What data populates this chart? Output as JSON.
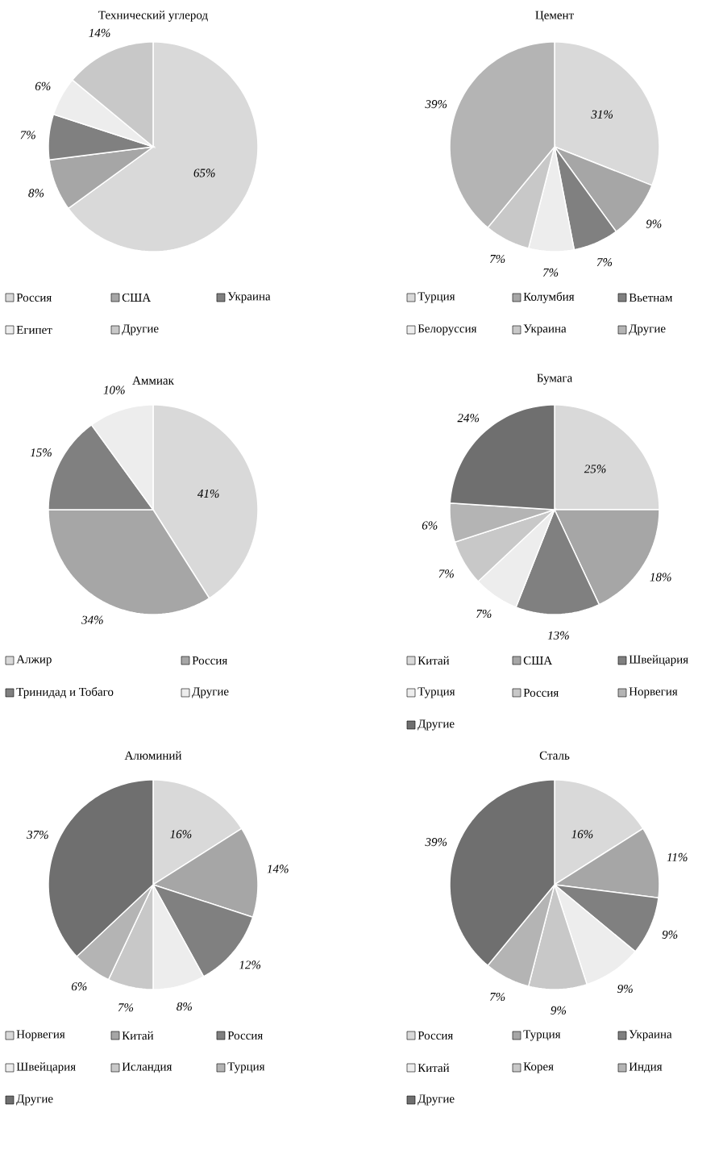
{
  "chart_data": [
    {
      "type": "pie",
      "title": "Технический углерод",
      "categories": [
        "Россия",
        "США",
        "Украина",
        "Египет",
        "Другие"
      ],
      "values": [
        65,
        8,
        7,
        6,
        14
      ],
      "value_labels": [
        "65%",
        "8%",
        "7%",
        "6%",
        "14%"
      ],
      "colors": [
        "#d9d9d9",
        "#a6a6a6",
        "#808080",
        "#ededed",
        "#c8c8c8"
      ],
      "legend": "bottom"
    },
    {
      "type": "pie",
      "title": "Цемент",
      "categories": [
        "Турция",
        "Колумбия",
        "Вьетнам",
        "Белоруссия",
        "Украина",
        "Другие"
      ],
      "values": [
        31,
        9,
        7,
        7,
        7,
        39
      ],
      "value_labels": [
        "31%",
        "9%",
        "7%",
        "7%",
        "7%",
        "39%"
      ],
      "colors": [
        "#d9d9d9",
        "#a6a6a6",
        "#808080",
        "#ededed",
        "#c8c8c8",
        "#b4b4b4"
      ],
      "legend": "bottom"
    },
    {
      "type": "pie",
      "title": "Аммиак",
      "categories": [
        "Алжир",
        "Россия",
        "Тринидад и Тобаго",
        "Другие"
      ],
      "values": [
        41,
        34,
        15,
        10
      ],
      "value_labels": [
        "41%",
        "34%",
        "15%",
        "10%"
      ],
      "colors": [
        "#d9d9d9",
        "#a6a6a6",
        "#808080",
        "#ededed"
      ],
      "legend": "bottom"
    },
    {
      "type": "pie",
      "title": "Бумага",
      "categories": [
        "Китай",
        "США",
        "Швейцария",
        "Турция",
        "Россия",
        "Норвегия",
        "Другие"
      ],
      "values": [
        25,
        18,
        13,
        7,
        7,
        6,
        24
      ],
      "value_labels": [
        "25%",
        "18%",
        "13%",
        "7%",
        "7%",
        "6%",
        "24%"
      ],
      "colors": [
        "#d9d9d9",
        "#a6a6a6",
        "#808080",
        "#ededed",
        "#c8c8c8",
        "#b4b4b4",
        "#6f6f6f"
      ],
      "legend": "bottom"
    },
    {
      "type": "pie",
      "title": "Алюминий",
      "categories": [
        "Норвегия",
        "Китай",
        "Россия",
        "Швейцария",
        "Исландия",
        "Турция",
        "Другие"
      ],
      "values": [
        16,
        14,
        12,
        8,
        7,
        6,
        37
      ],
      "value_labels": [
        "16%",
        "14%",
        "12%",
        "8%",
        "7%",
        "6%",
        "37%"
      ],
      "colors": [
        "#d9d9d9",
        "#a6a6a6",
        "#808080",
        "#ededed",
        "#c8c8c8",
        "#b4b4b4",
        "#6f6f6f"
      ],
      "legend": "bottom"
    },
    {
      "type": "pie",
      "title": "Сталь",
      "categories": [
        "Россия",
        "Турция",
        "Украина",
        "Китай",
        "Корея",
        "Индия",
        "Другие"
      ],
      "values": [
        16,
        11,
        9,
        9,
        9,
        7,
        39
      ],
      "value_labels": [
        "16%",
        "11%",
        "9%",
        "9%",
        "9%",
        "7%",
        "39%"
      ],
      "colors": [
        "#d9d9d9",
        "#a6a6a6",
        "#808080",
        "#ededed",
        "#c8c8c8",
        "#b4b4b4",
        "#6f6f6f"
      ],
      "legend": "bottom"
    }
  ]
}
